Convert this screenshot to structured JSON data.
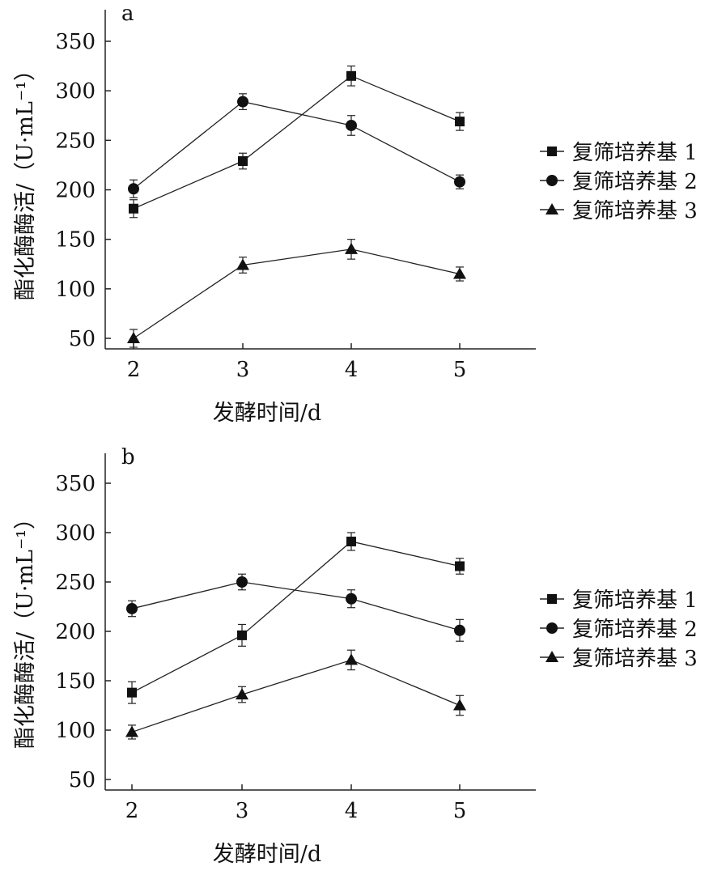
{
  "chart_data": [
    {
      "type": "line",
      "panel_label": "a",
      "xlabel": "发酵时间/d",
      "ylabel": "酯化酶酶活/（U·mL⁻¹）",
      "categories": [
        "2",
        "3",
        "4",
        "5"
      ],
      "x": [
        2,
        3,
        4,
        5
      ],
      "xlim": [
        1.75,
        5.7
      ],
      "ylim": [
        40,
        380
      ],
      "yticks": [
        50,
        100,
        150,
        200,
        250,
        300,
        350
      ],
      "legend_position": "right",
      "grid": false,
      "series": [
        {
          "name": "复筛培养基 1",
          "marker": "square",
          "values": [
            181,
            229,
            315,
            269
          ],
          "errors": [
            9,
            8,
            10,
            9
          ]
        },
        {
          "name": "复筛培养基 2",
          "marker": "circle",
          "values": [
            201,
            289,
            265,
            208
          ],
          "errors": [
            9,
            8,
            10,
            7
          ]
        },
        {
          "name": "复筛培养基 3",
          "marker": "triangle",
          "values": [
            50,
            124,
            140,
            115
          ],
          "errors": [
            9,
            8,
            10,
            7
          ]
        }
      ]
    },
    {
      "type": "line",
      "panel_label": "b",
      "xlabel": "发酵时间/d",
      "ylabel": "酯化酶酶活/（U·mL⁻¹）",
      "categories": [
        "2",
        "3",
        "4",
        "5"
      ],
      "x": [
        2,
        3,
        4,
        5
      ],
      "xlim": [
        1.75,
        5.7
      ],
      "ylim": [
        40,
        380
      ],
      "yticks": [
        50,
        100,
        150,
        200,
        250,
        300,
        350
      ],
      "legend_position": "right",
      "grid": false,
      "series": [
        {
          "name": "复筛培养基 1",
          "marker": "square",
          "values": [
            138,
            196,
            291,
            266
          ],
          "errors": [
            11,
            11,
            9,
            8
          ]
        },
        {
          "name": "复筛培养基 2",
          "marker": "circle",
          "values": [
            223,
            250,
            233,
            201
          ],
          "errors": [
            8,
            8,
            9,
            11
          ]
        },
        {
          "name": "复筛培养基 3",
          "marker": "triangle",
          "values": [
            98,
            136,
            171,
            125
          ],
          "errors": [
            7,
            8,
            10,
            10
          ]
        }
      ]
    }
  ]
}
